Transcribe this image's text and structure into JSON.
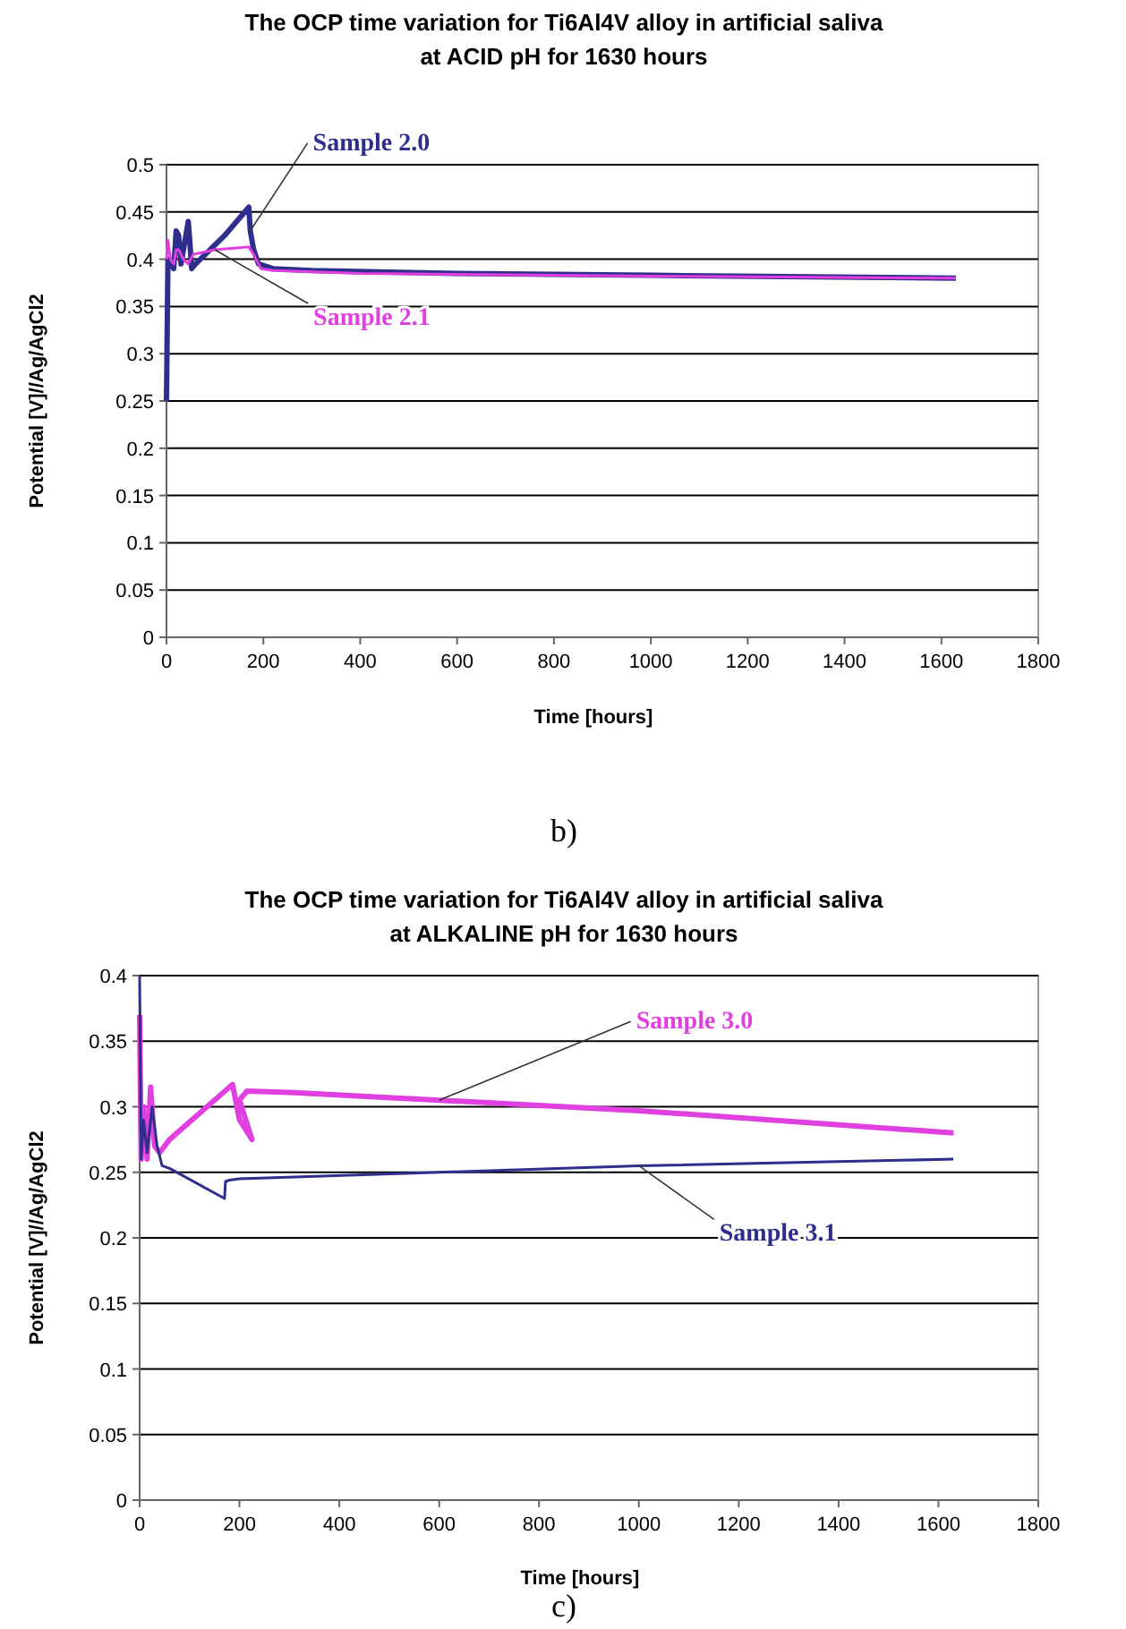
{
  "chart_data": [
    {
      "type": "line",
      "title": "The OCP time variation for Ti6Al4V alloy in artificial saliva\nat  ACID pH for 1630 hours",
      "xlabel": "Time [hours]",
      "ylabel": "Potential  [V]//Ag/AgCl2",
      "xlim": [
        0,
        1800
      ],
      "xticks": [
        0,
        200,
        400,
        600,
        800,
        1000,
        1200,
        1400,
        1600,
        1800
      ],
      "ylim": [
        0,
        0.5
      ],
      "yticks": [
        0,
        0.05,
        0.1,
        0.15,
        0.2,
        0.25,
        0.3,
        0.35,
        0.4,
        0.45,
        0.5
      ],
      "grid": "y",
      "marker": "none",
      "line_style": "solid",
      "series": [
        {
          "name": "Sample 2.0",
          "color": "#2e2e8c",
          "x": [
            0,
            3,
            8,
            15,
            20,
            25,
            30,
            45,
            48,
            52,
            60,
            120,
            170,
            173,
            180,
            190,
            220,
            300,
            600,
            1000,
            1630
          ],
          "values": [
            0.25,
            0.4,
            0.395,
            0.39,
            0.43,
            0.425,
            0.395,
            0.44,
            0.42,
            0.39,
            0.395,
            0.425,
            0.455,
            0.43,
            0.41,
            0.395,
            0.39,
            0.388,
            0.385,
            0.383,
            0.38
          ]
        },
        {
          "name": "Sample 2.1",
          "color": "#e040e0",
          "x": [
            0,
            3,
            8,
            15,
            20,
            25,
            35,
            45,
            55,
            100,
            170,
            180,
            195,
            220,
            400,
            1000,
            1630
          ],
          "values": [
            0.4,
            0.42,
            0.4,
            0.395,
            0.41,
            0.41,
            0.4,
            0.395,
            0.405,
            0.41,
            0.413,
            0.405,
            0.39,
            0.388,
            0.385,
            0.382,
            0.38
          ]
        }
      ],
      "annotations": [
        "b)"
      ]
    },
    {
      "type": "line",
      "title": "The OCP time variation for Ti6Al4V alloy in artificial saliva\nat ALKALINE pH for 1630 hours",
      "xlabel": "Time [hours]",
      "ylabel": "Potential [V]//Ag/AgCl2",
      "xlim": [
        0,
        1800
      ],
      "xticks": [
        0,
        200,
        400,
        600,
        800,
        1000,
        1200,
        1400,
        1600,
        1800
      ],
      "ylim": [
        0,
        0.4
      ],
      "yticks": [
        0,
        0.05,
        0.1,
        0.15,
        0.2,
        0.25,
        0.3,
        0.35,
        0.4
      ],
      "grid": "y",
      "marker": "none",
      "line_style": "solid",
      "series": [
        {
          "name": "Sample 3.0",
          "color": "#e040e0",
          "x": [
            0,
            3,
            8,
            15,
            22,
            30,
            40,
            60,
            186,
            200,
            225,
            200,
            215,
            300,
            600,
            1000,
            1630
          ],
          "values": [
            0.37,
            0.26,
            0.3,
            0.26,
            0.315,
            0.27,
            0.265,
            0.275,
            0.317,
            0.29,
            0.275,
            0.305,
            0.312,
            0.311,
            0.305,
            0.297,
            0.28
          ]
        },
        {
          "name": "Sample 3.1",
          "color": "#2e2e8c",
          "x": [
            0,
            3,
            8,
            15,
            25,
            35,
            45,
            60,
            170,
            172,
            180,
            200,
            600,
            1000,
            1630
          ],
          "values": [
            0.4,
            0.26,
            0.29,
            0.265,
            0.3,
            0.27,
            0.255,
            0.253,
            0.23,
            0.243,
            0.244,
            0.245,
            0.25,
            0.255,
            0.26
          ]
        }
      ],
      "annotations": [
        "c)"
      ]
    }
  ]
}
